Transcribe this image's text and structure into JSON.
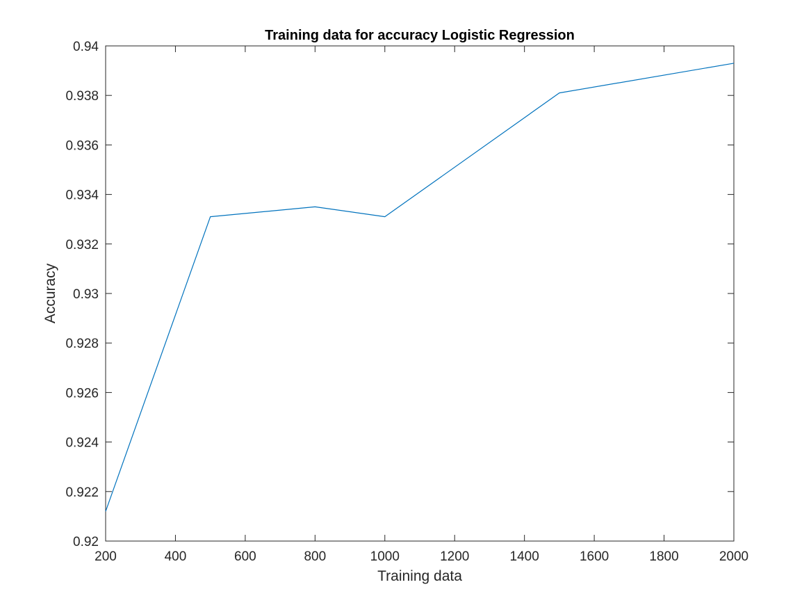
{
  "chart_data": {
    "type": "line",
    "title": "Training data for accuracy Logistic Regression",
    "xlabel": "Training data",
    "ylabel": "Accuracy",
    "xlim": [
      200,
      2000
    ],
    "ylim": [
      0.92,
      0.94
    ],
    "xticks": [
      200,
      400,
      600,
      800,
      1000,
      1200,
      1400,
      1600,
      1800,
      2000
    ],
    "xtick_labels": [
      "200",
      "400",
      "600",
      "800",
      "1000",
      "1200",
      "1400",
      "1600",
      "1800",
      "2000"
    ],
    "yticks": [
      0.92,
      0.922,
      0.924,
      0.926,
      0.928,
      0.93,
      0.932,
      0.934,
      0.936,
      0.938,
      0.94
    ],
    "ytick_labels": [
      "0.92",
      "0.922",
      "0.924",
      "0.926",
      "0.928",
      "0.93",
      "0.932",
      "0.934",
      "0.936",
      "0.938",
      "0.94"
    ],
    "grid": false,
    "series": [
      {
        "x": [
          200,
          500,
          800,
          1000,
          1500,
          2000
        ],
        "y": [
          0.9212,
          0.9331,
          0.9335,
          0.9331,
          0.9381,
          0.9393
        ],
        "color": "#0072BD"
      }
    ]
  }
}
